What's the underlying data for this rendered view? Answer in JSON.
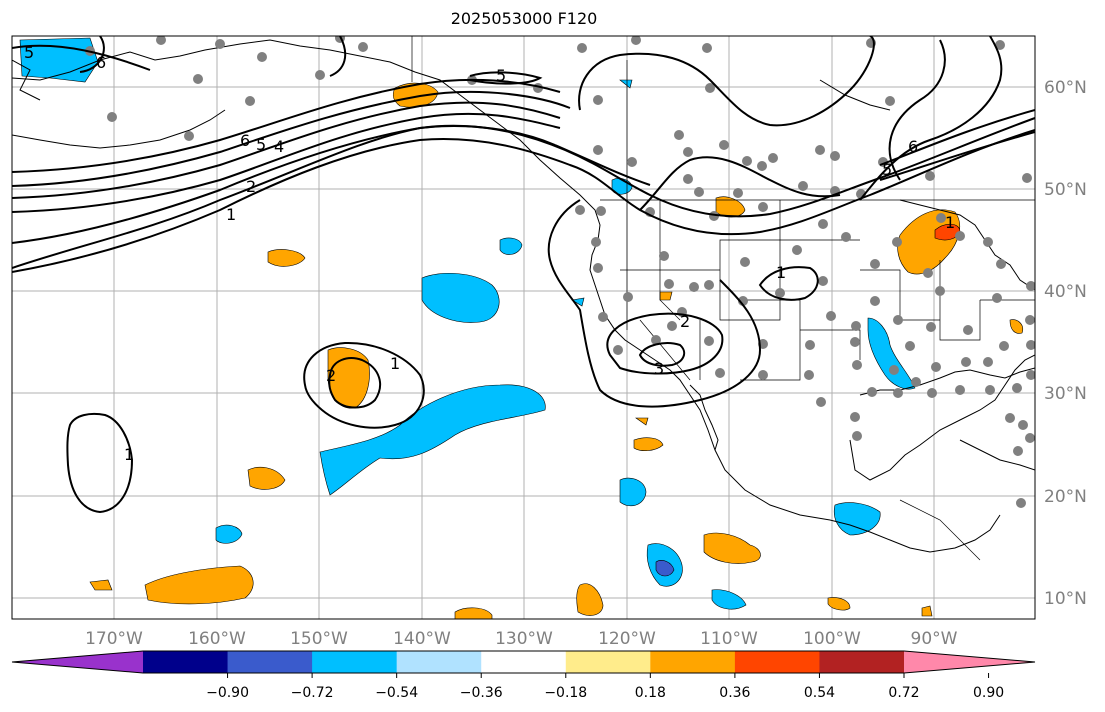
{
  "title": "2025053000 F120",
  "map": {
    "lon_labels": [
      "170°W",
      "160°W",
      "150°W",
      "140°W",
      "130°W",
      "120°W",
      "110°W",
      "100°W",
      "90°W"
    ],
    "lat_labels": [
      "60°N",
      "50°N",
      "40°N",
      "30°N",
      "20°N",
      "10°N"
    ],
    "contour_labels": [
      "5",
      "6",
      "6",
      "5",
      "4",
      "2",
      "1",
      "5",
      "1",
      "2",
      "3",
      "5",
      "6",
      "1",
      "2",
      "1",
      "1"
    ]
  },
  "colorbar": {
    "colors": [
      "#9932cc",
      "#00008b",
      "#3a5bcc",
      "#00bfff",
      "#b0e2ff",
      "#ffffff",
      "#ffec8b",
      "#ffa500",
      "#ff4500",
      "#b22222",
      "#ff88aa"
    ],
    "tick_labels": [
      "−0.90",
      "−0.72",
      "−0.54",
      "−0.36",
      "−0.18",
      "0.18",
      "0.36",
      "0.54",
      "0.72",
      "0.90"
    ]
  }
}
